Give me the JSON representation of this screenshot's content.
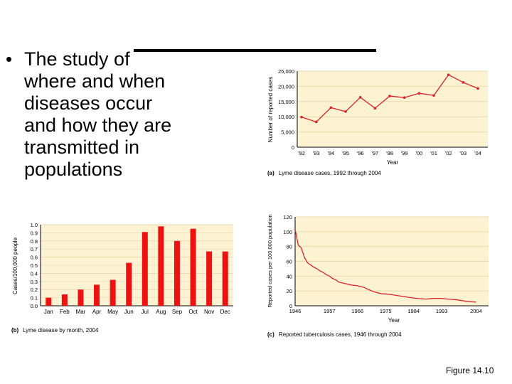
{
  "slide": {
    "bullet": "•",
    "bullet_lines": [
      "The study of",
      "where and when",
      "diseases occur",
      "and how they are",
      "transmitted in",
      "populations"
    ],
    "figure_label": "Figure 14.10"
  },
  "colors": {
    "panel_bg": "#fdf3d3",
    "grid": "#e8d9ad",
    "series": "#d9252a",
    "bar": "#ee1111"
  },
  "chart_data": [
    {
      "type": "line",
      "id": "a",
      "caption_letter": "(a)",
      "caption_text": "Lyme disease cases, 1992 through 2004",
      "xlabel": "Year",
      "ylabel": "Number of reported cases",
      "categories": [
        "'92",
        "'93",
        "'94",
        "'95",
        "'96",
        "'97",
        "'98",
        "'99",
        "'00",
        "'01",
        "'02",
        "'03",
        "'04"
      ],
      "values": [
        9900,
        8300,
        13000,
        11700,
        16400,
        12800,
        16800,
        16300,
        17700,
        17000,
        23800,
        21300,
        19300
      ],
      "yticks": [
        "0",
        "5,000",
        "10,000",
        "15,000",
        "20,000",
        "25,000"
      ],
      "ylim": [
        0,
        25000
      ],
      "markers": true
    },
    {
      "type": "bar",
      "id": "b",
      "caption_letter": "(b)",
      "caption_text": "Lyme disease by month, 2004",
      "ylabel": "Cases/100,000 people",
      "categories": [
        "Jan",
        "Feb",
        "Mar",
        "Apr",
        "May",
        "Jun",
        "Jul",
        "Aug",
        "Sep",
        "Oct",
        "Nov",
        "Dec"
      ],
      "values": [
        0.1,
        0.14,
        0.2,
        0.26,
        0.32,
        0.53,
        0.91,
        0.98,
        0.8,
        0.95,
        0.67,
        0.67
      ],
      "yticks": [
        "0.0",
        "0.2",
        "0.4",
        "0.6",
        "0.8",
        "1.0"
      ],
      "minor_ticks": [
        0.1,
        0.3,
        0.5,
        0.7,
        0.9
      ],
      "minor_labels": [
        "0.1",
        "0.3",
        "0.5",
        "0.7",
        "0.9"
      ],
      "ylim": [
        0,
        1.0
      ]
    },
    {
      "type": "line",
      "id": "c",
      "caption_letter": "(c)",
      "caption_text": "Reported tuberculosis cases, 1946 through 2004",
      "xlabel": "Year",
      "ylabel": "Reported cases per 100,000 population",
      "xticks": [
        "1946",
        "1957",
        "1966",
        "1975",
        "1984",
        "1993",
        "2004"
      ],
      "xtick_values": [
        1946,
        1957,
        1966,
        1975,
        1984,
        1993,
        2004
      ],
      "xlim": [
        1946,
        2008
      ],
      "x": [
        1946,
        1947,
        1948,
        1949,
        1950,
        1951,
        1952,
        1953,
        1954,
        1955,
        1956,
        1957,
        1958,
        1959,
        1960,
        1962,
        1964,
        1966,
        1968,
        1970,
        1972,
        1974,
        1975,
        1977,
        1980,
        1983,
        1985,
        1988,
        1990,
        1992,
        1993,
        1995,
        1998,
        2001,
        2004
      ],
      "values": [
        103,
        82,
        78,
        65,
        58,
        55,
        52,
        50,
        47,
        45,
        42,
        40,
        37,
        35,
        32,
        30,
        28,
        27,
        25,
        21,
        18,
        16,
        16,
        15,
        13,
        11,
        10,
        9,
        10,
        10,
        10,
        9,
        8,
        6,
        5
      ],
      "yticks": [
        "0",
        "20",
        "40",
        "60",
        "80",
        "100",
        "120"
      ],
      "ylim": [
        0,
        120
      ],
      "markers": false
    }
  ]
}
